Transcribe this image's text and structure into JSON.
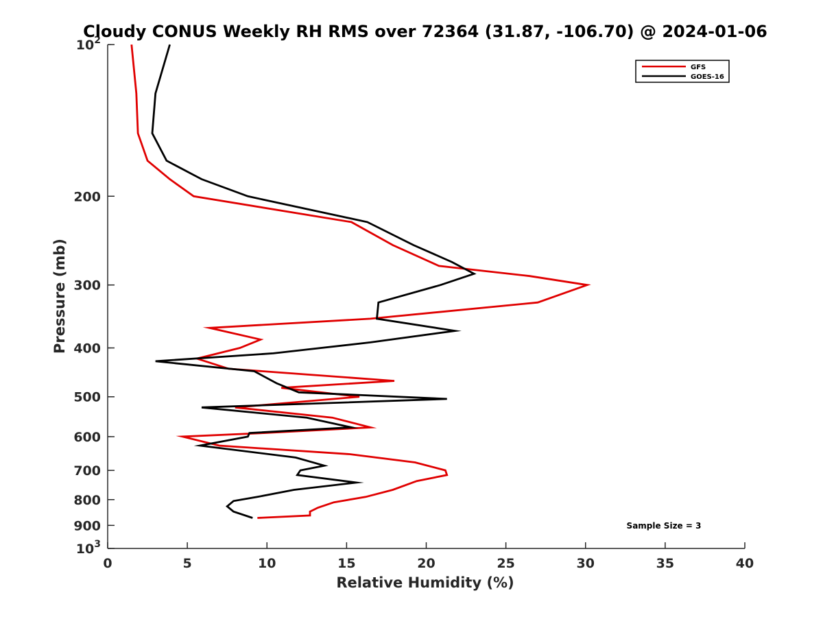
{
  "chart_data": {
    "type": "line",
    "title": "Cloudy CONUS Weekly RH RMS over 72364 (31.87, -106.70) @ 2024-01-06",
    "xlabel": "Relative Humidity (%)",
    "ylabel": "Pressure (mb)",
    "xlim": [
      0,
      40
    ],
    "ylim": [
      100,
      1000
    ],
    "yscale": "log",
    "y_reversed": true,
    "grid": false,
    "legend_position": "top-right",
    "x_ticks": [
      0,
      5,
      10,
      15,
      20,
      25,
      30,
      35,
      40
    ],
    "y_ticks": [
      {
        "value": 100,
        "base": "10",
        "exp": "2"
      },
      {
        "value": 200,
        "label": "200"
      },
      {
        "value": 300,
        "label": "300"
      },
      {
        "value": 400,
        "label": "400"
      },
      {
        "value": 500,
        "label": "500"
      },
      {
        "value": 600,
        "label": "600"
      },
      {
        "value": 700,
        "label": "700"
      },
      {
        "value": 800,
        "label": "800"
      },
      {
        "value": 900,
        "label": "900"
      },
      {
        "value": 1000,
        "base": "10",
        "exp": "3"
      }
    ],
    "series": [
      {
        "name": "GFS",
        "color": "#e00000",
        "points": [
          [
            1.5,
            100
          ],
          [
            1.8,
            125
          ],
          [
            1.9,
            150
          ],
          [
            2.5,
            170
          ],
          [
            3.9,
            185
          ],
          [
            5.4,
            200
          ],
          [
            15.3,
            225
          ],
          [
            17.9,
            250
          ],
          [
            20.8,
            275
          ],
          [
            26.5,
            288
          ],
          [
            30.1,
            300
          ],
          [
            27.0,
            325
          ],
          [
            16.5,
            350
          ],
          [
            6.4,
            365
          ],
          [
            9.6,
            385
          ],
          [
            8.3,
            400
          ],
          [
            5.6,
            420
          ],
          [
            7.6,
            440
          ],
          [
            18.0,
            465
          ],
          [
            10.9,
            480
          ],
          [
            15.8,
            500
          ],
          [
            8.0,
            525
          ],
          [
            14.1,
            550
          ],
          [
            16.5,
            575
          ],
          [
            9.8,
            590
          ],
          [
            4.7,
            600
          ],
          [
            7.0,
            625
          ],
          [
            15.2,
            650
          ],
          [
            19.3,
            675
          ],
          [
            21.2,
            700
          ],
          [
            21.3,
            715
          ],
          [
            19.4,
            735
          ],
          [
            17.9,
            765
          ],
          [
            16.2,
            790
          ],
          [
            14.2,
            810
          ],
          [
            13.2,
            830
          ],
          [
            12.7,
            845
          ],
          [
            12.7,
            860
          ],
          [
            9.4,
            870
          ]
        ]
      },
      {
        "name": "GOES-16",
        "color": "#000000",
        "points": [
          [
            3.9,
            100
          ],
          [
            3.0,
            125
          ],
          [
            2.8,
            150
          ],
          [
            3.7,
            170
          ],
          [
            5.9,
            185
          ],
          [
            8.8,
            200
          ],
          [
            16.3,
            225
          ],
          [
            19.2,
            250
          ],
          [
            21.6,
            270
          ],
          [
            23.0,
            285
          ],
          [
            20.9,
            300
          ],
          [
            17.0,
            325
          ],
          [
            16.9,
            350
          ],
          [
            21.8,
            370
          ],
          [
            16.5,
            390
          ],
          [
            10.4,
            410
          ],
          [
            3.0,
            425
          ],
          [
            9.2,
            445
          ],
          [
            10.6,
            470
          ],
          [
            12.0,
            490
          ],
          [
            21.3,
            505
          ],
          [
            5.9,
            525
          ],
          [
            12.5,
            550
          ],
          [
            15.3,
            575
          ],
          [
            8.9,
            590
          ],
          [
            8.8,
            600
          ],
          [
            5.8,
            625
          ],
          [
            11.8,
            660
          ],
          [
            13.6,
            685
          ],
          [
            12.1,
            700
          ],
          [
            11.9,
            715
          ],
          [
            15.6,
            740
          ],
          [
            11.7,
            765
          ],
          [
            9.4,
            790
          ],
          [
            7.9,
            805
          ],
          [
            7.5,
            825
          ],
          [
            7.9,
            845
          ],
          [
            9.1,
            870
          ]
        ]
      }
    ],
    "annotation": "Sample Size = 3"
  }
}
